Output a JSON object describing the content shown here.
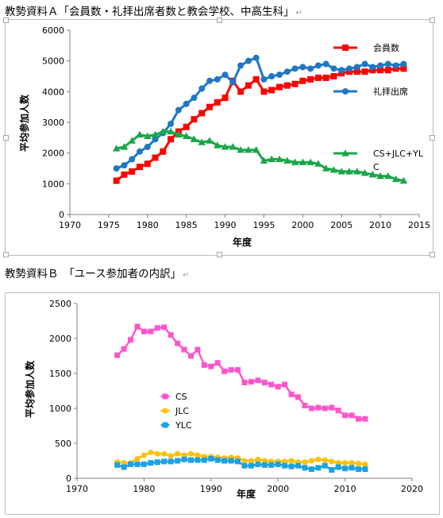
{
  "caption_a": "教勢資料Ａ「会員数・礼拝出席者数と教会学校、中高生科」",
  "caption_b": "教勢資料Ｂ　「ユース参加者の内訳」",
  "paragraph_mark": "↵",
  "chart_data": [
    {
      "type": "line",
      "xlabel": "年度",
      "ylabel": "平均参加人数",
      "xlim": [
        1970,
        2015
      ],
      "ylim": [
        0,
        6000
      ],
      "xticks": [
        1970,
        1975,
        1980,
        1985,
        1990,
        1995,
        2000,
        2005,
        2010,
        2015
      ],
      "yticks": [
        0,
        1000,
        2000,
        3000,
        4000,
        5000,
        6000
      ],
      "grid": "none",
      "legend": "right",
      "x": [
        1976,
        1977,
        1978,
        1979,
        1980,
        1981,
        1982,
        1983,
        1984,
        1985,
        1986,
        1987,
        1988,
        1989,
        1990,
        1991,
        1992,
        1993,
        1994,
        1995,
        1996,
        1997,
        1998,
        1999,
        2000,
        2001,
        2002,
        2003,
        2004,
        2005,
        2006,
        2007,
        2008,
        2009,
        2010,
        2011,
        2012,
        2013
      ],
      "series": [
        {
          "name": "会員数",
          "color": "#ff0000",
          "marker": "square",
          "values": [
            1100,
            1300,
            1400,
            1550,
            1650,
            1850,
            2050,
            2450,
            2700,
            2850,
            3100,
            3300,
            3500,
            3650,
            3800,
            4350,
            4000,
            4200,
            4400,
            4000,
            4050,
            4150,
            4200,
            4250,
            4350,
            4400,
            4450,
            4450,
            4500,
            4600,
            4650,
            4650,
            4650,
            4700,
            4700,
            4700,
            4750,
            4750
          ]
        },
        {
          "name": "礼拝出席",
          "color": "#1f77c4",
          "marker": "circle",
          "values": [
            1500,
            1600,
            1800,
            2050,
            2200,
            2450,
            2650,
            2950,
            3400,
            3600,
            3800,
            4100,
            4350,
            4400,
            4550,
            4300,
            4850,
            5000,
            5100,
            4400,
            4500,
            4550,
            4650,
            4750,
            4800,
            4750,
            4850,
            4900,
            4750,
            4700,
            4750,
            4800,
            4900,
            4800,
            4850,
            4900,
            4850,
            4900
          ]
        },
        {
          "name": "CS+JLC+YLC",
          "color": "#1aa64a",
          "marker": "triangle",
          "values": [
            2150,
            2200,
            2400,
            2600,
            2550,
            2600,
            2700,
            2700,
            2600,
            2550,
            2450,
            2350,
            2400,
            2250,
            2200,
            2200,
            2100,
            2100,
            2100,
            1750,
            1800,
            1800,
            1750,
            1700,
            1700,
            1700,
            1650,
            1500,
            1450,
            1400,
            1400,
            1400,
            1350,
            1300,
            1250,
            1250,
            1150,
            1100
          ]
        }
      ]
    },
    {
      "type": "line",
      "xlabel": "年度",
      "ylabel": "平均参加人数",
      "xlim": [
        1970,
        2020
      ],
      "ylim": [
        0,
        2500
      ],
      "xticks": [
        1970,
        1980,
        1990,
        2000,
        2010,
        2020
      ],
      "yticks": [
        0,
        500,
        1000,
        1500,
        2000,
        2500
      ],
      "grid": "none",
      "legend": "center-left",
      "x": [
        1976,
        1977,
        1978,
        1979,
        1980,
        1981,
        1982,
        1983,
        1984,
        1985,
        1986,
        1987,
        1988,
        1989,
        1990,
        1991,
        1992,
        1993,
        1994,
        1995,
        1996,
        1997,
        1998,
        1999,
        2000,
        2001,
        2002,
        2003,
        2004,
        2005,
        2006,
        2007,
        2008,
        2009,
        2010,
        2011,
        2012,
        2013
      ],
      "series": [
        {
          "name": "CS",
          "color": "#ff55cc",
          "marker": "square",
          "values": [
            1760,
            1850,
            1980,
            2170,
            2100,
            2100,
            2150,
            2160,
            2050,
            1930,
            1840,
            1750,
            1840,
            1620,
            1600,
            1650,
            1530,
            1550,
            1550,
            1370,
            1380,
            1400,
            1370,
            1340,
            1310,
            1340,
            1200,
            1160,
            1040,
            1000,
            1010,
            1000,
            1010,
            970,
            900,
            900,
            850,
            850
          ]
        },
        {
          "name": "JLC",
          "color": "#ffc000",
          "marker": "circle",
          "values": [
            230,
            220,
            220,
            280,
            330,
            370,
            350,
            350,
            320,
            350,
            330,
            350,
            330,
            310,
            310,
            300,
            290,
            300,
            290,
            250,
            250,
            270,
            250,
            240,
            240,
            240,
            250,
            230,
            230,
            250,
            270,
            260,
            240,
            220,
            220,
            220,
            210,
            200
          ]
        },
        {
          "name": "YLC",
          "color": "#1da1e2",
          "marker": "square",
          "values": [
            190,
            160,
            200,
            200,
            200,
            220,
            230,
            240,
            240,
            250,
            270,
            260,
            260,
            260,
            280,
            260,
            250,
            250,
            240,
            180,
            180,
            200,
            190,
            190,
            200,
            180,
            170,
            180,
            150,
            130,
            150,
            180,
            120,
            160,
            140,
            150,
            130,
            130
          ]
        }
      ]
    }
  ]
}
